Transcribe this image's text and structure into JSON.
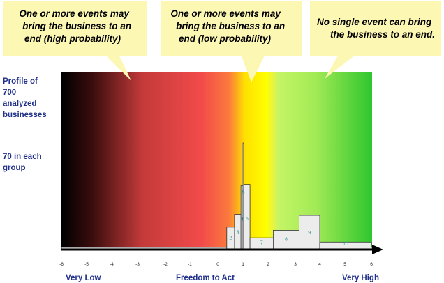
{
  "callouts": [
    {
      "text": "One or more events may bring the business to an end (high probability)",
      "lines": [
        "One or more events may",
        "bring the business to an",
        "end (high probability)"
      ]
    },
    {
      "text": "One or more events may bring the business to an end (low probability)",
      "lines": [
        "One or more events may",
        "bring the business to an",
        "end (low probability)"
      ]
    },
    {
      "text": "No single event can bring the business to an end.",
      "lines": [
        "No single event can bring",
        "the business to an end."
      ]
    }
  ],
  "side_text": {
    "profile_lines": [
      "Profile of",
      "700",
      "analyzed",
      "businesses"
    ],
    "group_lines": [
      "70 in each",
      "group"
    ]
  },
  "chart_data": {
    "type": "bar",
    "title": "",
    "xlabel": "Freedom to Act",
    "x_end_labels": {
      "left": "Very Low",
      "right": "Very High"
    },
    "xlim": [
      -6,
      6
    ],
    "x_ticks": [
      -6,
      -5,
      -4,
      -3,
      -2,
      -1,
      0,
      1,
      2,
      3,
      4,
      5,
      6
    ],
    "ylim": [
      0,
      100
    ],
    "bars": [
      {
        "label": "1",
        "x0": -6.0,
        "x1": 0.4,
        "y": 2
      },
      {
        "label": "2",
        "x0": 0.4,
        "x1": 0.7,
        "y": 21
      },
      {
        "label": "3",
        "x0": 0.7,
        "x1": 0.95,
        "y": 33
      },
      {
        "label": "4",
        "x0": 0.95,
        "x1": 1.03,
        "y": 60
      },
      {
        "label": "5",
        "x0": 1.03,
        "x1": 1.07,
        "y": 100
      },
      {
        "label": "6",
        "x0": 1.07,
        "x1": 1.3,
        "y": 61
      },
      {
        "label": "7",
        "x0": 1.3,
        "x1": 2.2,
        "y": 11
      },
      {
        "label": "8",
        "x0": 2.2,
        "x1": 3.2,
        "y": 18
      },
      {
        "label": "9",
        "x0": 3.2,
        "x1": 4.0,
        "y": 32
      },
      {
        "label": "10",
        "x0": 4.0,
        "x1": 6.0,
        "y": 7
      }
    ],
    "background_zones": [
      "#000000",
      "#f24a4a",
      "#ffff00",
      "#c4f566",
      "#2ec62e"
    ]
  }
}
